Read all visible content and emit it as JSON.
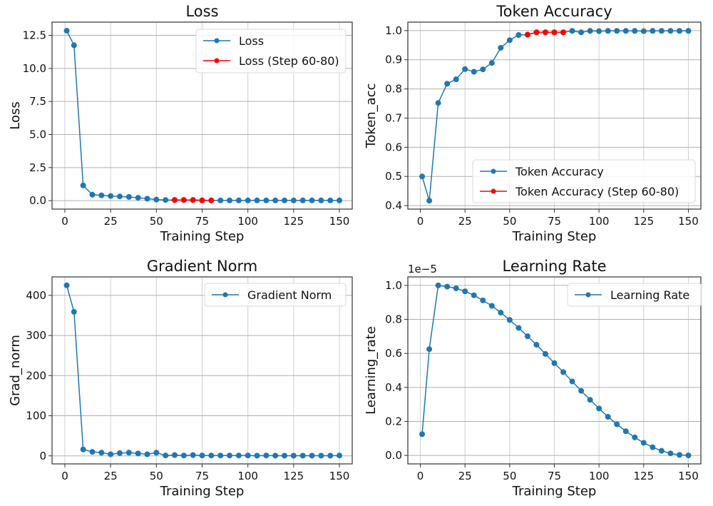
{
  "chart_data": [
    {
      "type": "line",
      "title": "Loss",
      "xlabel": "Training Step",
      "ylabel": "Loss",
      "xlim": [
        -7,
        157
      ],
      "ylim": [
        -0.64,
        13.5
      ],
      "xticks": [
        0,
        25,
        50,
        75,
        100,
        125,
        150
      ],
      "yticks": [
        0.0,
        2.5,
        5.0,
        7.5,
        10.0,
        12.5
      ],
      "ytick_labels": [
        "0.0",
        "2.5",
        "5.0",
        "7.5",
        "10.0",
        "12.5"
      ],
      "grid": true,
      "legend_position": "top-right",
      "x": [
        1,
        5,
        10,
        15,
        20,
        25,
        30,
        35,
        40,
        45,
        50,
        55,
        60,
        65,
        70,
        75,
        80,
        85,
        90,
        95,
        100,
        105,
        110,
        115,
        120,
        125,
        130,
        135,
        140,
        145,
        150
      ],
      "series": [
        {
          "name": "Loss",
          "color": "#1f77b4",
          "values": [
            12.85,
            11.75,
            1.15,
            0.45,
            0.4,
            0.35,
            0.32,
            0.28,
            0.22,
            0.15,
            0.08,
            0.05,
            0.05,
            0.05,
            0.05,
            0.02,
            0.02,
            0.02,
            0.02,
            0.02,
            0.02,
            0.02,
            0.02,
            0.02,
            0.02,
            0.02,
            0.02,
            0.02,
            0.02,
            0.02,
            0.02
          ]
        },
        {
          "name": "Loss (Step 60-80)",
          "color": "#ff0000",
          "x": [
            60,
            65,
            70,
            75,
            80
          ],
          "values": [
            0.05,
            0.05,
            0.05,
            0.02,
            0.02
          ]
        }
      ]
    },
    {
      "type": "line",
      "title": "Token Accuracy",
      "xlabel": "Training Step",
      "ylabel": "Token_acc",
      "xlim": [
        -7,
        157
      ],
      "ylim": [
        0.388,
        1.029
      ],
      "xticks": [
        0,
        25,
        50,
        75,
        100,
        125,
        150
      ],
      "yticks": [
        0.4,
        0.5,
        0.6,
        0.7,
        0.8,
        0.9,
        1.0
      ],
      "ytick_labels": [
        "0.4",
        "0.5",
        "0.6",
        "0.7",
        "0.8",
        "0.9",
        "1.0"
      ],
      "grid": true,
      "legend_position": "lower-right",
      "x": [
        1,
        5,
        10,
        15,
        20,
        25,
        30,
        35,
        40,
        45,
        50,
        55,
        60,
        65,
        70,
        75,
        80,
        85,
        90,
        95,
        100,
        105,
        110,
        115,
        120,
        125,
        130,
        135,
        140,
        145,
        150
      ],
      "series": [
        {
          "name": "Token Accuracy",
          "color": "#1f77b4",
          "values": [
            0.5,
            0.417,
            0.752,
            0.818,
            0.833,
            0.868,
            0.859,
            0.867,
            0.889,
            0.941,
            0.967,
            0.985,
            0.986,
            0.994,
            0.994,
            0.994,
            0.994,
            0.999,
            0.994,
            0.999,
            0.998,
            0.999,
            0.999,
            0.999,
            0.999,
            0.998,
            0.999,
            0.999,
            0.999,
            0.999,
            0.999
          ]
        },
        {
          "name": "Token Accuracy (Step 60-80)",
          "color": "#ff0000",
          "x": [
            60,
            65,
            70,
            75,
            80
          ],
          "values": [
            0.986,
            0.994,
            0.994,
            0.994,
            0.994
          ]
        }
      ]
    },
    {
      "type": "line",
      "title": "Gradient Norm",
      "xlabel": "Training Step",
      "ylabel": "Grad_norm",
      "xlim": [
        -7,
        157
      ],
      "ylim": [
        -20,
        446
      ],
      "xticks": [
        0,
        25,
        50,
        75,
        100,
        125,
        150
      ],
      "yticks": [
        0,
        100,
        200,
        300,
        400
      ],
      "ytick_labels": [
        "0",
        "100",
        "200",
        "300",
        "400"
      ],
      "grid": true,
      "legend_position": "top-right",
      "x": [
        1,
        5,
        10,
        15,
        20,
        25,
        30,
        35,
        40,
        45,
        50,
        55,
        60,
        65,
        70,
        75,
        80,
        85,
        90,
        95,
        100,
        105,
        110,
        115,
        120,
        125,
        130,
        135,
        140,
        145,
        150
      ],
      "series": [
        {
          "name": "Gradient Norm",
          "color": "#1f77b4",
          "values": [
            425,
            359,
            16,
            10,
            8,
            4,
            7,
            8,
            6,
            4,
            8,
            1,
            2,
            1,
            2,
            1,
            1,
            1,
            1,
            1,
            1,
            0.5,
            1,
            0.5,
            0.5,
            0.5,
            0.5,
            0.5,
            0.5,
            0.5,
            1
          ]
        }
      ]
    },
    {
      "type": "line",
      "title": "Learning Rate",
      "xlabel": "Training Step",
      "ylabel": "Learning_rate",
      "offset_label": "1e−5",
      "xlim": [
        -7,
        157
      ],
      "ylim": [
        -0.05,
        1.05
      ],
      "xticks": [
        0,
        25,
        50,
        75,
        100,
        125,
        150
      ],
      "yticks": [
        0.0,
        0.2,
        0.4,
        0.6,
        0.8,
        1.0
      ],
      "ytick_labels": [
        "0.0",
        "0.2",
        "0.4",
        "0.6",
        "0.8",
        "1.0"
      ],
      "grid": true,
      "legend_position": "top-right",
      "x": [
        1,
        5,
        10,
        15,
        20,
        25,
        30,
        35,
        40,
        45,
        50,
        55,
        60,
        65,
        70,
        75,
        80,
        85,
        90,
        95,
        100,
        105,
        110,
        115,
        120,
        125,
        130,
        135,
        140,
        145,
        150
      ],
      "series": [
        {
          "name": "Learning Rate",
          "color": "#1f77b4",
          "values": [
            0.125,
            0.625,
            1.0,
            0.993,
            0.983,
            0.965,
            0.942,
            0.912,
            0.88,
            0.84,
            0.797,
            0.75,
            0.701,
            0.651,
            0.597,
            0.543,
            0.49,
            0.435,
            0.38,
            0.327,
            0.276,
            0.227,
            0.183,
            0.142,
            0.106,
            0.074,
            0.048,
            0.027,
            0.012,
            0.003,
            0.0
          ]
        }
      ]
    }
  ]
}
